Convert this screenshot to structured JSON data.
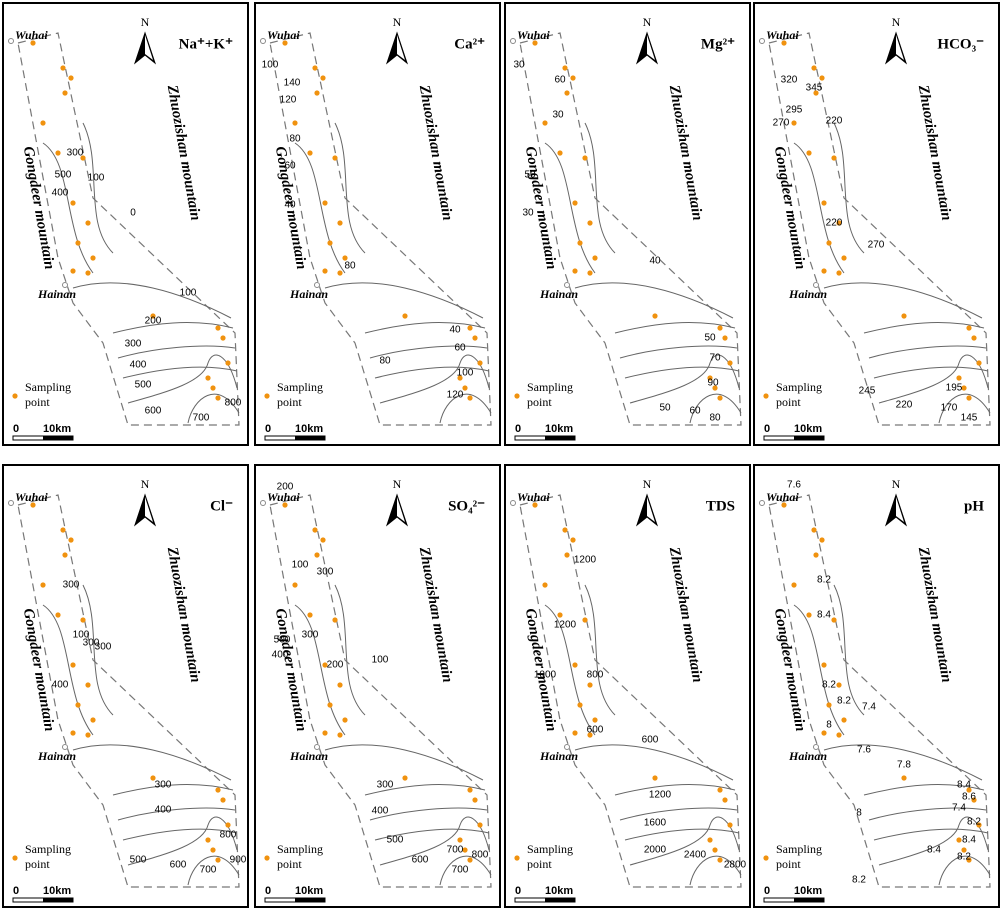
{
  "labels": {
    "north": "N",
    "city_top": "Wuhai",
    "city_mid": "Hainan",
    "mountain_east": "Zhuozishan mountain",
    "mountain_west": "Gongdeer mountain",
    "legend_line1": "Sampling",
    "legend_line2": "point",
    "scale_zero": "0",
    "scale_length": "10km"
  },
  "panels": [
    {
      "title": "Na⁺+K⁺",
      "contour_labels": [
        "500",
        "400",
        "300",
        "100",
        "0",
        "100",
        "200",
        "300",
        "400",
        "500",
        "600",
        "700",
        "800"
      ]
    },
    {
      "title": "Ca²⁺",
      "contour_labels": [
        "100",
        "140",
        "120",
        "80",
        "60",
        "40",
        "80",
        "40",
        "60",
        "80",
        "100",
        "120"
      ]
    },
    {
      "title": "Mg²⁺",
      "contour_labels": [
        "30",
        "60",
        "30",
        "50",
        "30",
        "40",
        "50",
        "70",
        "90",
        "50",
        "60",
        "80"
      ]
    },
    {
      "title": "HCO₃⁻",
      "contour_labels": [
        "320",
        "345",
        "295",
        "270",
        "220",
        "220",
        "270",
        "245",
        "220",
        "170",
        "195",
        "145"
      ]
    },
    {
      "title": "Cl⁻",
      "contour_labels": [
        "300",
        "100",
        "300",
        "300",
        "400",
        "300",
        "400",
        "500",
        "600",
        "700",
        "800",
        "900"
      ]
    },
    {
      "title": "SO₄²⁻",
      "contour_labels": [
        "200",
        "100",
        "300",
        "500",
        "400",
        "300",
        "200",
        "100",
        "300",
        "400",
        "500",
        "600",
        "700",
        "700",
        "800"
      ]
    },
    {
      "title": "TDS",
      "contour_labels": [
        "1200",
        "1200",
        "1000",
        "800",
        "600",
        "600",
        "1200",
        "1600",
        "2000",
        "2400",
        "2800"
      ]
    },
    {
      "title": "pH",
      "contour_labels": [
        "7.6",
        "8.2",
        "8.4",
        "8.2",
        "8.2",
        "7.4",
        "8",
        "7.6",
        "7.8",
        "8",
        "8.4",
        "8.6",
        "8.2",
        "7.4",
        "8.4",
        "8.4",
        "8.2",
        "8.2"
      ]
    }
  ]
}
